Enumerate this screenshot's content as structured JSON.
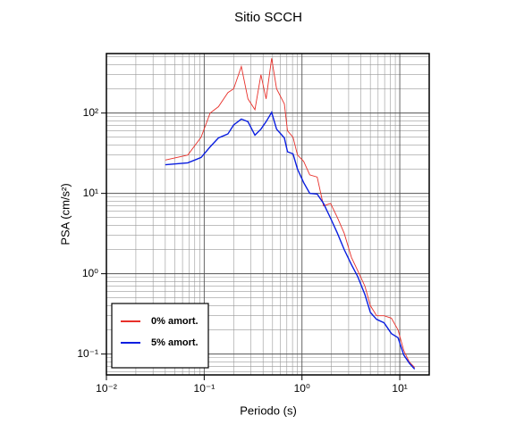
{
  "chart_data": {
    "type": "line",
    "title": "Sitio SCCH",
    "x_label": "Periodo (s)",
    "y_label": "PSA (cm/s²)",
    "log_x": true,
    "log_y": true,
    "grid": true,
    "legend": "lower left",
    "xlim": [
      0.01,
      20
    ],
    "ylim": [
      0.055,
      550
    ],
    "xticks": [
      {
        "value": 0.01,
        "label": "10⁻²"
      },
      {
        "value": 0.1,
        "label": "10⁻¹"
      },
      {
        "value": 1,
        "label": "10⁰"
      },
      {
        "value": 10,
        "label": "10¹"
      }
    ],
    "yticks": [
      {
        "value": 0.1,
        "label": "10⁻¹"
      },
      {
        "value": 1,
        "label": "10⁰"
      },
      {
        "value": 10,
        "label": "10¹"
      },
      {
        "value": 100,
        "label": "10²"
      }
    ],
    "x": [
      0.04,
      0.068,
      0.093,
      0.115,
      0.14,
      0.175,
      0.2,
      0.24,
      0.28,
      0.33,
      0.38,
      0.43,
      0.49,
      0.55,
      0.66,
      0.71,
      0.81,
      0.9,
      1.04,
      1.2,
      1.43,
      1.66,
      1.96,
      2.3,
      2.7,
      3.2,
      3.7,
      4.4,
      5.0,
      5.8,
      6.9,
      8.2,
      9.6,
      11,
      12.5,
      14.2
    ],
    "series": [
      {
        "name": "0% amort.",
        "color": "#e8302a",
        "values": [
          26,
          30,
          50,
          100,
          120,
          180,
          200,
          380,
          150,
          110,
          300,
          150,
          480,
          200,
          130,
          60,
          50,
          30,
          25,
          17,
          16,
          7,
          7.5,
          5,
          3.2,
          1.6,
          1.1,
          0.7,
          0.4,
          0.3,
          0.3,
          0.28,
          0.2,
          0.11,
          0.08,
          0.068
        ]
      },
      {
        "name": "5% amort.",
        "color": "#0a1ee0",
        "values": [
          22.7,
          24,
          28,
          38,
          49,
          55,
          71,
          84,
          78,
          53,
          63,
          78,
          102,
          63,
          49,
          33,
          31,
          20,
          13.6,
          10,
          9.8,
          7.5,
          4.9,
          3.2,
          2.0,
          1.3,
          0.93,
          0.55,
          0.33,
          0.27,
          0.245,
          0.18,
          0.16,
          0.097,
          0.077,
          0.065
        ]
      }
    ]
  }
}
